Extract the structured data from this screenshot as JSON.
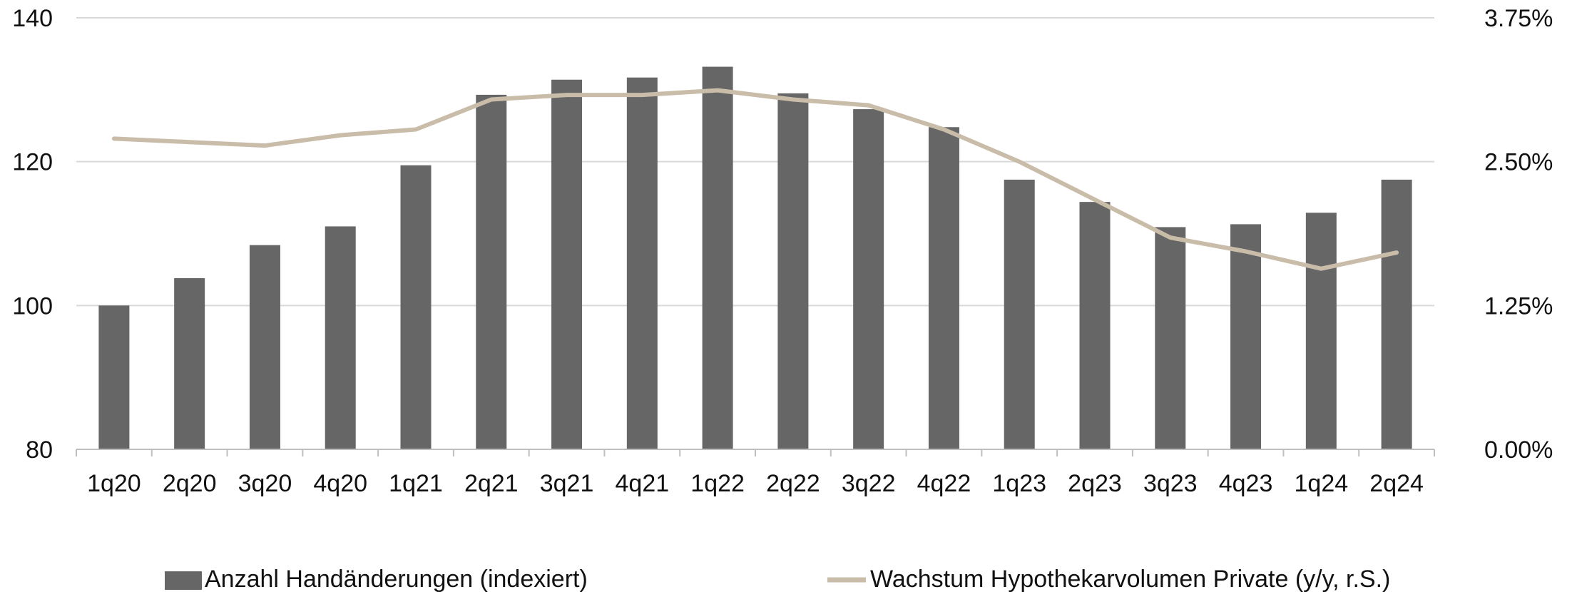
{
  "chart_data": {
    "type": "bar+line",
    "categories": [
      "1q20",
      "2q20",
      "3q20",
      "4q20",
      "1q21",
      "2q21",
      "3q21",
      "4q21",
      "1q22",
      "2q22",
      "3q22",
      "4q22",
      "1q23",
      "2q23",
      "3q23",
      "4q23",
      "1q24",
      "2q24"
    ],
    "series": [
      {
        "name": "Anzahl Handänderungen (indexiert)",
        "kind": "bar",
        "axis": "left",
        "values": [
          100.0,
          103.8,
          108.4,
          111.0,
          119.5,
          129.3,
          131.4,
          131.7,
          133.2,
          129.5,
          127.3,
          124.8,
          117.5,
          114.4,
          110.9,
          111.3,
          112.9,
          117.5
        ]
      },
      {
        "name": "Wachstum Hypothekarvolumen Private (y/y, r.S.)",
        "kind": "line",
        "axis": "right",
        "values": [
          2.7,
          2.67,
          2.64,
          2.73,
          2.78,
          3.04,
          3.08,
          3.08,
          3.12,
          3.04,
          2.99,
          2.78,
          2.5,
          2.17,
          1.84,
          1.72,
          1.57,
          1.71
        ]
      }
    ],
    "y_left": {
      "min": 80,
      "max": 140,
      "ticks": [
        "80",
        "100",
        "120",
        "140"
      ]
    },
    "y_right": {
      "min": 0.0,
      "max": 3.75,
      "ticks": [
        "0.00%",
        "1.25%",
        "2.50%",
        "3.75%"
      ]
    },
    "grid": true,
    "legend_position": "bottom",
    "colors": {
      "bar": "#666666",
      "line": "#c9bca9",
      "grid": "#d9d9d9",
      "axis": "#bfbfbf"
    }
  }
}
